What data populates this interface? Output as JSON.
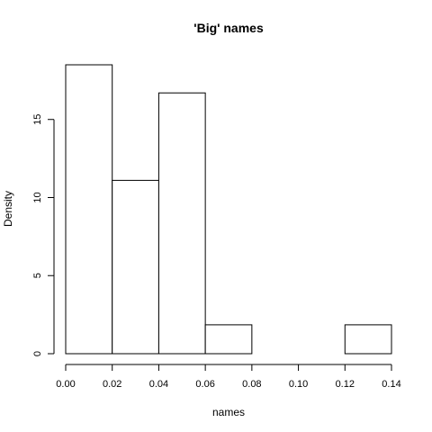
{
  "chart_data": {
    "type": "bar",
    "subtype": "histogram",
    "title": "'Big' names",
    "xlabel": "names",
    "ylabel": "Density",
    "bins": [
      {
        "from": 0.0,
        "to": 0.02,
        "value": 18.5
      },
      {
        "from": 0.02,
        "to": 0.04,
        "value": 11.1
      },
      {
        "from": 0.04,
        "to": 0.06,
        "value": 16.7
      },
      {
        "from": 0.06,
        "to": 0.08,
        "value": 1.85
      },
      {
        "from": 0.08,
        "to": 0.1,
        "value": 0
      },
      {
        "from": 0.1,
        "to": 0.12,
        "value": 0
      },
      {
        "from": 0.12,
        "to": 0.14,
        "value": 1.85
      }
    ],
    "xlim": [
      0,
      0.14
    ],
    "ylim": [
      0,
      18.5
    ],
    "x_ticks": [
      "0.00",
      "0.02",
      "0.04",
      "0.06",
      "0.08",
      "0.10",
      "0.12",
      "0.14"
    ],
    "y_ticks": [
      "0",
      "5",
      "10",
      "15"
    ],
    "bar_fill": "#ffffff",
    "bar_stroke": "#000000",
    "grid": false,
    "legend": "none"
  }
}
